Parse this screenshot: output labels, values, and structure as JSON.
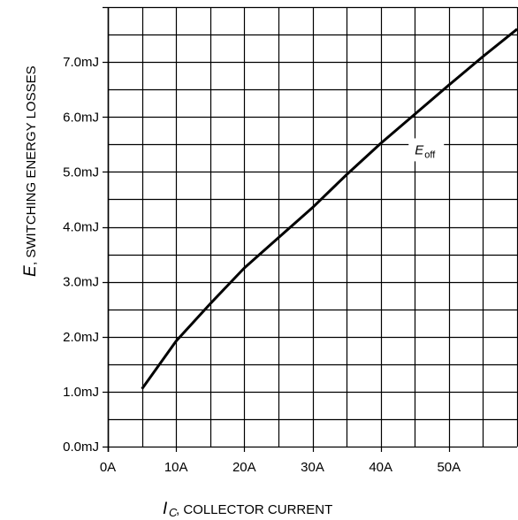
{
  "chart_data": {
    "type": "line",
    "title": "",
    "xlabel": {
      "symbol": "I",
      "subscript": "C",
      "text": ", COLLECTOR CURRENT"
    },
    "ylabel": {
      "symbol": "E",
      "text": ", SWITCHING ENERGY LOSSES"
    },
    "xlim": [
      0,
      60
    ],
    "ylim": [
      0,
      8
    ],
    "x_ticks": [
      0,
      10,
      20,
      30,
      40,
      50
    ],
    "x_tick_labels": [
      "0A",
      "10A",
      "20A",
      "30A",
      "40A",
      "50A"
    ],
    "y_ticks": [
      0,
      1,
      2,
      3,
      4,
      5,
      6,
      7
    ],
    "y_tick_labels": [
      "0.0mJ",
      "1.0mJ",
      "2.0mJ",
      "3.0mJ",
      "4.0mJ",
      "5.0mJ",
      "6.0mJ",
      "7.0mJ"
    ],
    "grid": true,
    "series": [
      {
        "name": "E_off",
        "x": [
          5,
          10,
          15,
          20,
          25,
          30,
          35,
          40,
          45,
          50,
          55,
          60
        ],
        "y": [
          1.05,
          1.92,
          2.6,
          3.25,
          3.8,
          4.35,
          4.95,
          5.52,
          6.05,
          6.58,
          7.1,
          7.6
        ]
      }
    ],
    "annotations": [
      {
        "main": "E",
        "sub": "off",
        "x": 45,
        "y": 5.45
      }
    ]
  }
}
